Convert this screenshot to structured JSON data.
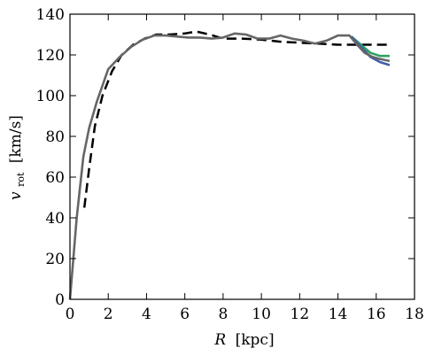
{
  "chart_data": {
    "type": "line",
    "xlabel": {
      "symbol": "R",
      "unit": "[kpc]"
    },
    "ylabel": {
      "symbol": "v",
      "subscript": "rot",
      "unit": "[km/s]"
    },
    "xlim": [
      0,
      18
    ],
    "ylim": [
      0,
      140
    ],
    "xticks": [
      "0",
      "2",
      "4",
      "6",
      "8",
      "10",
      "12",
      "14",
      "16",
      "18"
    ],
    "yticks": [
      "0",
      "20",
      "40",
      "60",
      "80",
      "100",
      "120",
      "140"
    ],
    "grid": false,
    "series": [
      {
        "style": "dashed",
        "color": "#000000",
        "x": [
          0.75,
          1.0,
          1.3,
          1.7,
          2.2,
          2.7,
          3.3,
          3.9,
          4.5,
          5.2,
          6.0,
          6.6,
          7.3,
          8.0,
          9.0,
          10.0,
          11.0,
          12.0,
          13.0,
          14.0,
          15.0,
          16.0,
          16.7
        ],
        "y": [
          45,
          64,
          85,
          100,
          112,
          120,
          125,
          128,
          130,
          130,
          130.5,
          131.5,
          130,
          128,
          128,
          127.5,
          126.5,
          126,
          125.5,
          125,
          125,
          125,
          125
        ]
      },
      {
        "style": "solid",
        "color": "#2ca25f",
        "x": [
          14.7,
          15.2,
          15.7,
          16.2,
          16.7
        ],
        "y": [
          129,
          125,
          121,
          119.5,
          119.5
        ]
      },
      {
        "style": "solid",
        "color": "#3f5fa8",
        "x": [
          14.7,
          15.2,
          15.7,
          16.2,
          16.7
        ],
        "y": [
          129,
          124,
          119,
          116.5,
          115
        ]
      },
      {
        "style": "solid",
        "color": "#666666",
        "x": [
          0,
          0.35,
          0.7,
          1.0,
          1.4,
          2.0,
          2.6,
          3.2,
          3.8,
          4.4,
          5.0,
          5.6,
          6.2,
          6.8,
          7.4,
          8.0,
          8.6,
          9.2,
          9.8,
          10.4,
          11.0,
          11.6,
          12.2,
          12.8,
          13.4,
          14.0,
          14.6,
          15.0,
          15.4,
          15.8,
          16.2,
          16.7
        ],
        "y": [
          0,
          40,
          70,
          84,
          97,
          113,
          119,
          124,
          127.5,
          129.5,
          129.5,
          129,
          128.5,
          128.5,
          128,
          128.5,
          130.5,
          130,
          128,
          128,
          129.5,
          128,
          127,
          125.5,
          127,
          129.5,
          129.5,
          125,
          121,
          119,
          118,
          117
        ]
      }
    ]
  }
}
